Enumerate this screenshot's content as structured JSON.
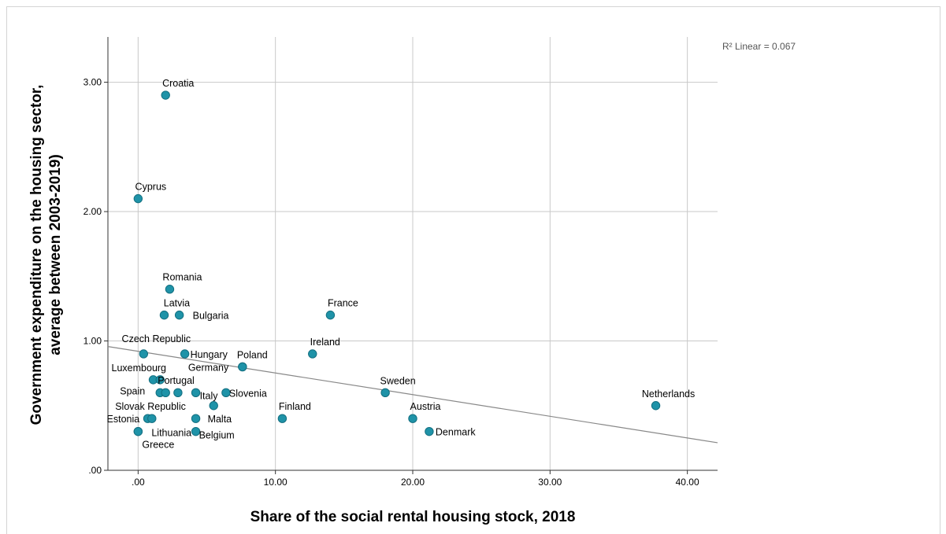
{
  "chart_data": {
    "type": "scatter",
    "xlabel": "Share of the social rental housing stock, 2018",
    "ylabel_lines": [
      "Government expenditure on the housing sector,",
      "average between 2003-2019)"
    ],
    "xlim": [
      -2.2,
      42.2
    ],
    "ylim": [
      0,
      3.35
    ],
    "x_ticks": [
      0,
      10,
      20,
      30,
      40
    ],
    "x_tick_labels": [
      ".00",
      "10.00",
      "20.00",
      "30.00",
      "40.00"
    ],
    "y_ticks": [
      0,
      1,
      2,
      3
    ],
    "y_tick_labels": [
      ".00",
      "1.00",
      "2.00",
      "3.00"
    ],
    "grid": true,
    "marker_color": "#1f93a8",
    "fit_line": {
      "label": "R² Linear = 0.067",
      "intercept": 0.92,
      "slope": -0.01675
    },
    "points": [
      {
        "name": "Croatia",
        "x": 2.0,
        "y": 2.9
      },
      {
        "name": "Cyprus",
        "x": 0.0,
        "y": 2.1
      },
      {
        "name": "Romania",
        "x": 2.3,
        "y": 1.4
      },
      {
        "name": "Latvia",
        "x": 1.9,
        "y": 1.2
      },
      {
        "name": "Bulgaria",
        "x": 3.0,
        "y": 1.2
      },
      {
        "name": "France",
        "x": 14.0,
        "y": 1.2
      },
      {
        "name": "Czech Republic",
        "x": 0.4,
        "y": 0.9
      },
      {
        "name": "Hungary",
        "x": 3.4,
        "y": 0.9
      },
      {
        "name": "Ireland",
        "x": 12.7,
        "y": 0.9
      },
      {
        "name": "Poland",
        "x": 7.6,
        "y": 0.8
      },
      {
        "name": "Germany",
        "x": 7.6,
        "y": 0.8
      },
      {
        "name": "Luxembourg",
        "x": 1.1,
        "y": 0.7
      },
      {
        "name": "Portugal",
        "x": 1.6,
        "y": 0.7
      },
      {
        "name": "Spain",
        "x": 1.6,
        "y": 0.6
      },
      {
        "name": "",
        "x": 2.0,
        "y": 0.6
      },
      {
        "name": "",
        "x": 2.9,
        "y": 0.6
      },
      {
        "name": "Italy",
        "x": 4.2,
        "y": 0.6
      },
      {
        "name": "Slovenia",
        "x": 6.4,
        "y": 0.6
      },
      {
        "name": "Sweden",
        "x": 18.0,
        "y": 0.6
      },
      {
        "name": "Slovak Republic",
        "x": 5.5,
        "y": 0.5
      },
      {
        "name": "Netherlands",
        "x": 37.7,
        "y": 0.5
      },
      {
        "name": "Estonia",
        "x": 0.7,
        "y": 0.4
      },
      {
        "name": "",
        "x": 1.0,
        "y": 0.4
      },
      {
        "name": "Malta",
        "x": 4.2,
        "y": 0.4
      },
      {
        "name": "Finland",
        "x": 10.5,
        "y": 0.4
      },
      {
        "name": "Austria",
        "x": 20.0,
        "y": 0.4
      },
      {
        "name": "Lithuania",
        "x": 0.0,
        "y": 0.3
      },
      {
        "name": "Greece",
        "x": 0.0,
        "y": 0.3
      },
      {
        "name": "Belgium",
        "x": 4.2,
        "y": 0.3
      },
      {
        "name": "Denmark",
        "x": 21.2,
        "y": 0.3
      }
    ]
  }
}
